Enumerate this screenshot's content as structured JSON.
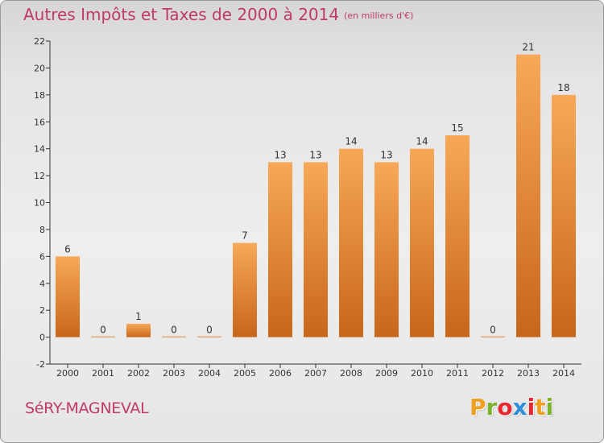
{
  "header": {
    "title": "Autres Impôts et Taxes de 2000 à 2014",
    "subtitle": "(en milliers d'€)"
  },
  "footer": {
    "commune": "SéRY-MAGNEVAL",
    "logo_letters": [
      "P",
      "r",
      "o",
      "x",
      "i",
      "t",
      "i"
    ],
    "logo_colors": [
      "#f0a020",
      "#7bb32e",
      "#e8262d",
      "#2f8fd6",
      "#e8262d",
      "#f0a020",
      "#7bb32e"
    ]
  },
  "colors": {
    "bar_top": "#f7a858",
    "bar_bottom": "#c8661a",
    "title": "#c0396a",
    "axis": "#333333"
  },
  "chart_data": {
    "type": "bar",
    "categories": [
      "2000",
      "2001",
      "2002",
      "2003",
      "2004",
      "2005",
      "2006",
      "2007",
      "2008",
      "2009",
      "2010",
      "2011",
      "2012",
      "2013",
      "2014"
    ],
    "values": [
      6,
      0,
      1,
      0,
      0,
      7,
      13,
      13,
      14,
      13,
      14,
      15,
      0,
      21,
      18
    ],
    "data_labels": [
      "6",
      "0",
      "1",
      "0",
      "0",
      "7",
      "13",
      "13",
      "14",
      "13",
      "14",
      "15",
      "0",
      "21",
      "18"
    ],
    "y_ticks": [
      "-2",
      "0",
      "2",
      "4",
      "6",
      "8",
      "10",
      "12",
      "14",
      "16",
      "18",
      "20",
      "22"
    ],
    "ylim": [
      -2,
      22
    ],
    "grid": false
  }
}
